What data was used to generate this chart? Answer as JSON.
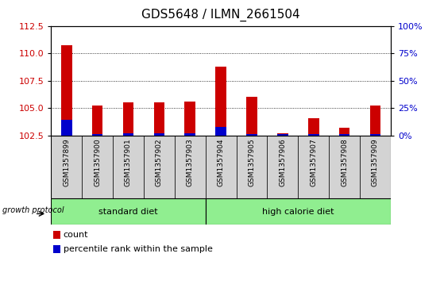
{
  "title": "GDS5648 / ILMN_2661504",
  "samples": [
    "GSM1357899",
    "GSM1357900",
    "GSM1357901",
    "GSM1357902",
    "GSM1357903",
    "GSM1357904",
    "GSM1357905",
    "GSM1357906",
    "GSM1357907",
    "GSM1357908",
    "GSM1357909"
  ],
  "count_values": [
    110.7,
    105.2,
    105.5,
    105.5,
    105.6,
    108.8,
    106.0,
    102.7,
    104.1,
    103.2,
    105.2
  ],
  "percentile_values": [
    103.9,
    102.65,
    102.7,
    102.7,
    102.7,
    103.3,
    102.65,
    102.6,
    102.65,
    102.6,
    102.65
  ],
  "base": 102.5,
  "ymin": 102.5,
  "ymax": 112.5,
  "yticks": [
    102.5,
    105.0,
    107.5,
    110.0,
    112.5
  ],
  "right_yticks": [
    0,
    25,
    50,
    75,
    100
  ],
  "right_yticklabels": [
    "0",
    "25",
    "50",
    "75",
    "100%"
  ],
  "bar_color": "#cc0000",
  "percentile_color": "#0000cc",
  "title_fontsize": 11,
  "axis_label_color_left": "#cc0000",
  "axis_label_color_right": "#0000cc",
  "groups": [
    {
      "label": "standard diet",
      "start": 0,
      "end": 4
    },
    {
      "label": "high calorie diet",
      "start": 5,
      "end": 10
    }
  ],
  "group_label": "growth protocol",
  "group_color": "#90ee90",
  "bar_width": 0.35
}
